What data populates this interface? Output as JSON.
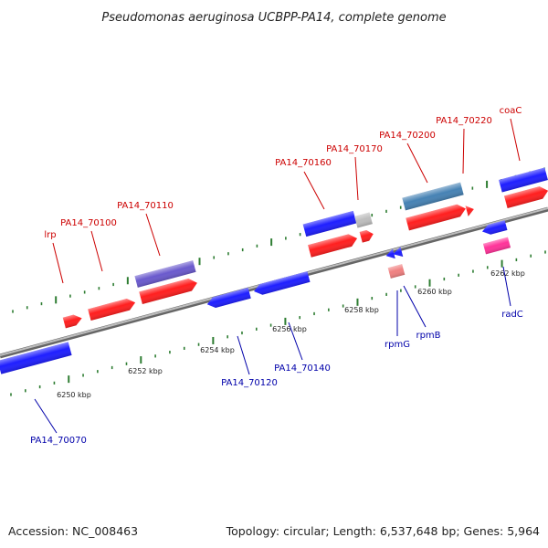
{
  "title": "Pseudomonas aeruginosa UCBPP-PA14, complete genome",
  "footer": {
    "accession": "Accession: NC_008463",
    "topology": "Topology: circular; Length: 6,537,648 bp; Genes: 5,964"
  },
  "colors": {
    "forward_label": "#cc0000",
    "reverse_label": "#0000aa",
    "backbone": "#8a8a8a",
    "tick": "#2e7d32",
    "red_feature": "#ff1f1f",
    "blue_feature": "#1f1fff",
    "purple_feature": "#6a5acd",
    "steelblue_feature": "#4682b4",
    "gray_feature": "#bdbdbd",
    "pink_feature": "#ff3399",
    "salmon_feature": "#f08080"
  },
  "scale_labels": [
    "6250 kbp",
    "6252 kbp",
    "6254 kbp",
    "6256 kbp",
    "6258 kbp",
    "6260 kbp",
    "6262 kbp"
  ],
  "forward_labels": [
    "lrp",
    "PA14_70100",
    "PA14_70110",
    "PA14_70160",
    "PA14_70170",
    "PA14_70200",
    "PA14_70220",
    "coaC"
  ],
  "reverse_labels": [
    "PA14_70070",
    "PA14_70120",
    "PA14_70140",
    "rpmG",
    "rpmB",
    "radC"
  ]
}
